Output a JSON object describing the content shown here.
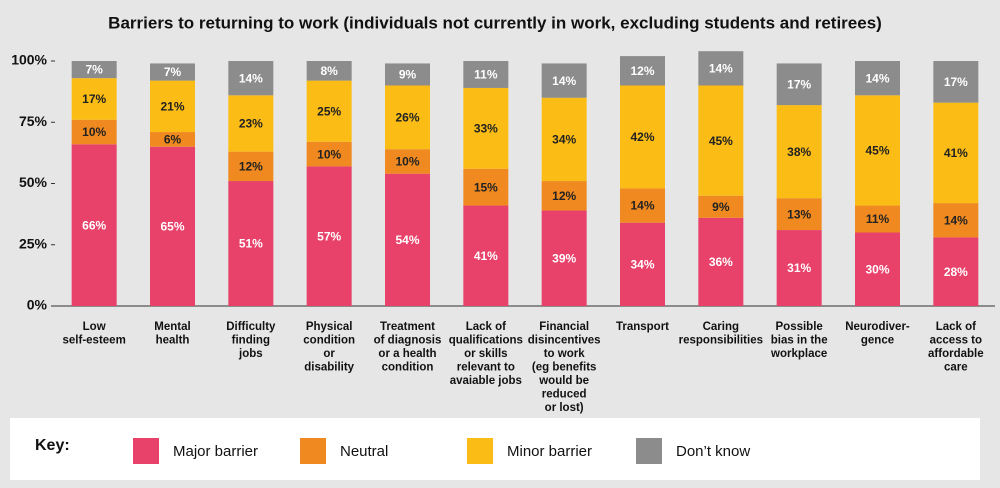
{
  "chart_data": {
    "type": "stacked_bar",
    "title": "Barriers to returning to work (individuals not currently in work, excluding students and retirees)",
    "categories": [
      [
        "Low",
        "self-esteem"
      ],
      [
        "Mental",
        "health"
      ],
      [
        "Difficulty",
        "finding",
        "jobs"
      ],
      [
        "Physical",
        "condition",
        "or",
        "disability"
      ],
      [
        "Treatment",
        "of diagnosis",
        "or a health",
        "condition"
      ],
      [
        "Lack of",
        "qualifications",
        "or skills",
        "relevant to",
        "avaiable jobs"
      ],
      [
        "Financial",
        "disincentives",
        "to work",
        "(eg benefits",
        "would be",
        "reduced",
        "or lost)"
      ],
      [
        "Transport"
      ],
      [
        "Caring",
        "responsibilities"
      ],
      [
        "Possible",
        "bias in the",
        "workplace"
      ],
      [
        "Neurodiver-",
        "gence"
      ],
      [
        "Lack of",
        "access to",
        "affordable",
        "care"
      ]
    ],
    "series": [
      {
        "name": "Major barrier",
        "color": "#e8416a",
        "values": [
          66,
          65,
          51,
          57,
          54,
          41,
          39,
          34,
          36,
          31,
          30,
          28
        ],
        "value_labels": [
          "66%",
          "65%",
          "51%",
          "57%",
          "54%",
          "41%",
          "39%",
          "34%",
          "36%",
          "31%",
          "30%",
          "28%"
        ]
      },
      {
        "name": "Neutral",
        "color": "#f0891f",
        "values": [
          10,
          6,
          12,
          10,
          10,
          15,
          12,
          14,
          9,
          13,
          11,
          14
        ],
        "value_labels": [
          "10%",
          "6%",
          "12%",
          "10%",
          "10%",
          "15%",
          "12%",
          "14%",
          "9%",
          "13%",
          "11%",
          "14%"
        ]
      },
      {
        "name": "Minor barrier",
        "color": "#fbbc15",
        "values": [
          17,
          21,
          23,
          25,
          26,
          33,
          34,
          42,
          45,
          38,
          45,
          41
        ],
        "value_labels": [
          "17%",
          "21%",
          "23%",
          "25%",
          "26%",
          "33%",
          "34%",
          "42%",
          "45%",
          "38%",
          "45%",
          "41%"
        ]
      },
      {
        "name": "Don’t know",
        "color": "#8c8c8c",
        "values": [
          7,
          7,
          14,
          8,
          9,
          11,
          14,
          12,
          14,
          17,
          14,
          17
        ],
        "value_labels": [
          "7%",
          "7%",
          "14%",
          "8%",
          "9%",
          "11%",
          "14%",
          "12%",
          "14%",
          "17%",
          "14%",
          "17%"
        ]
      }
    ],
    "ylim": [
      0,
      100
    ],
    "yticks": [
      {
        "value": 0,
        "label": "0%"
      },
      {
        "value": 25,
        "label": "25%"
      },
      {
        "value": 50,
        "label": "50%"
      },
      {
        "value": 75,
        "label": "75%"
      },
      {
        "value": 100,
        "label": "100%"
      }
    ],
    "legend_title": "Key:"
  }
}
